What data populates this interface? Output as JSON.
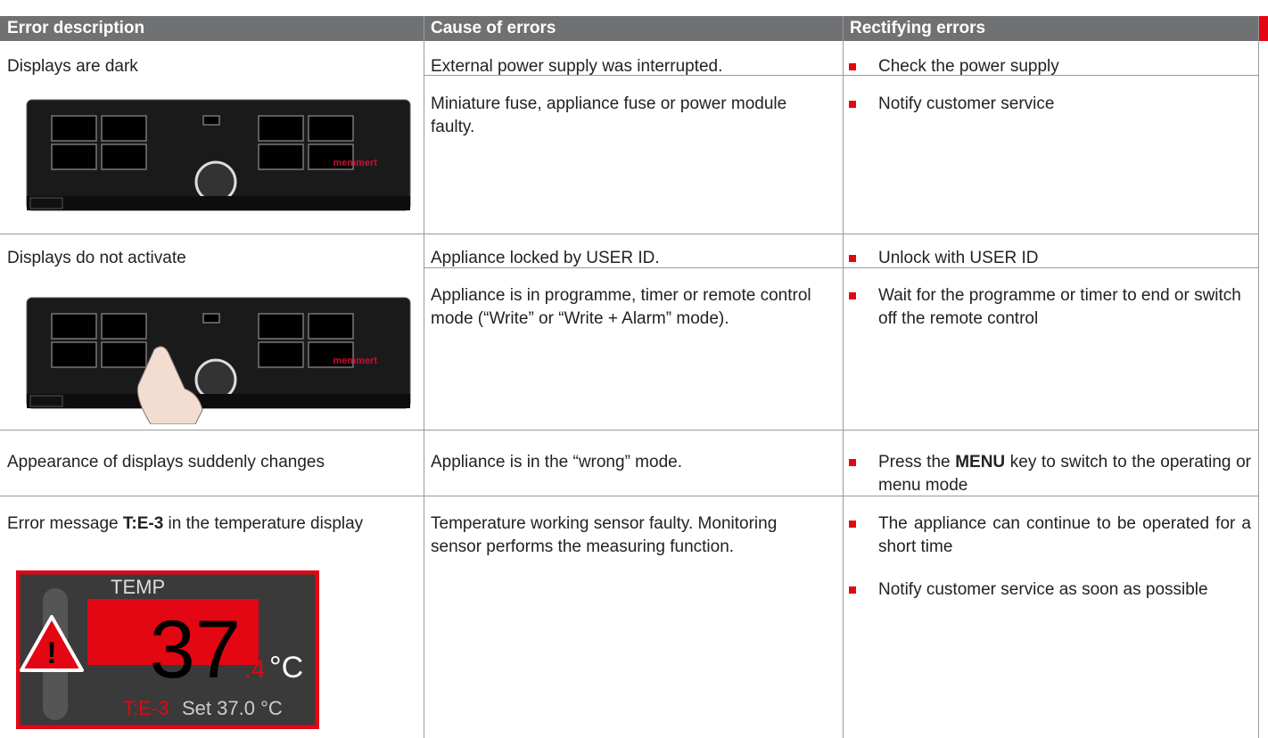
{
  "header": {
    "columns": [
      "Error description",
      "Cause of errors",
      "Rectifying errors"
    ]
  },
  "rows": [
    {
      "description": [
        "Displays are dark"
      ],
      "image": {
        "brand": "memmert"
      },
      "causes": [
        {
          "text": "External power supply was interrupted.",
          "remedies": [
            [
              "Check the power supply"
            ]
          ]
        },
        {
          "text": "Miniature fuse, appliance fuse or power module faulty.",
          "remedies": [
            [
              "Notify customer service"
            ]
          ]
        }
      ]
    },
    {
      "description": [
        "Displays do not activate"
      ],
      "image": {
        "brand": "memmert"
      },
      "causes": [
        {
          "text": "Appliance locked by USER ID.",
          "remedies": [
            [
              "Unlock with USER ID"
            ]
          ]
        },
        {
          "text": "Appliance is in programme, timer or remote control mode (“Write” or “Write + Alarm” mode).",
          "remedies": [
            [
              "Wait for the programme or timer to end or switch off the remote control"
            ]
          ]
        }
      ]
    },
    {
      "description": [
        "Appearance of displays suddenly changes"
      ],
      "causes": [
        {
          "text": "Appliance is in the “wrong” mode.",
          "remedies": [
            [
              "Press the ",
              "MENU",
              " key to switch to the operating or menu mode"
            ]
          ]
        }
      ]
    },
    {
      "description": [
        "Error message ",
        "T:E-3",
        " in the temperature display"
      ],
      "image": {
        "label": "TEMP",
        "value": "37",
        "decimal": ".4",
        "unit": "°C",
        "error": "T:E-3",
        "setpoint": "Set 37.0 °C"
      },
      "causes": [
        {
          "text": "Temperature working sensor faulty. Monitoring sensor performs the measuring function.",
          "remedies": [
            [
              "The appliance can continue to be operated for a short time"
            ],
            [
              "Notify customer service as soon as possible"
            ]
          ]
        }
      ]
    }
  ]
}
